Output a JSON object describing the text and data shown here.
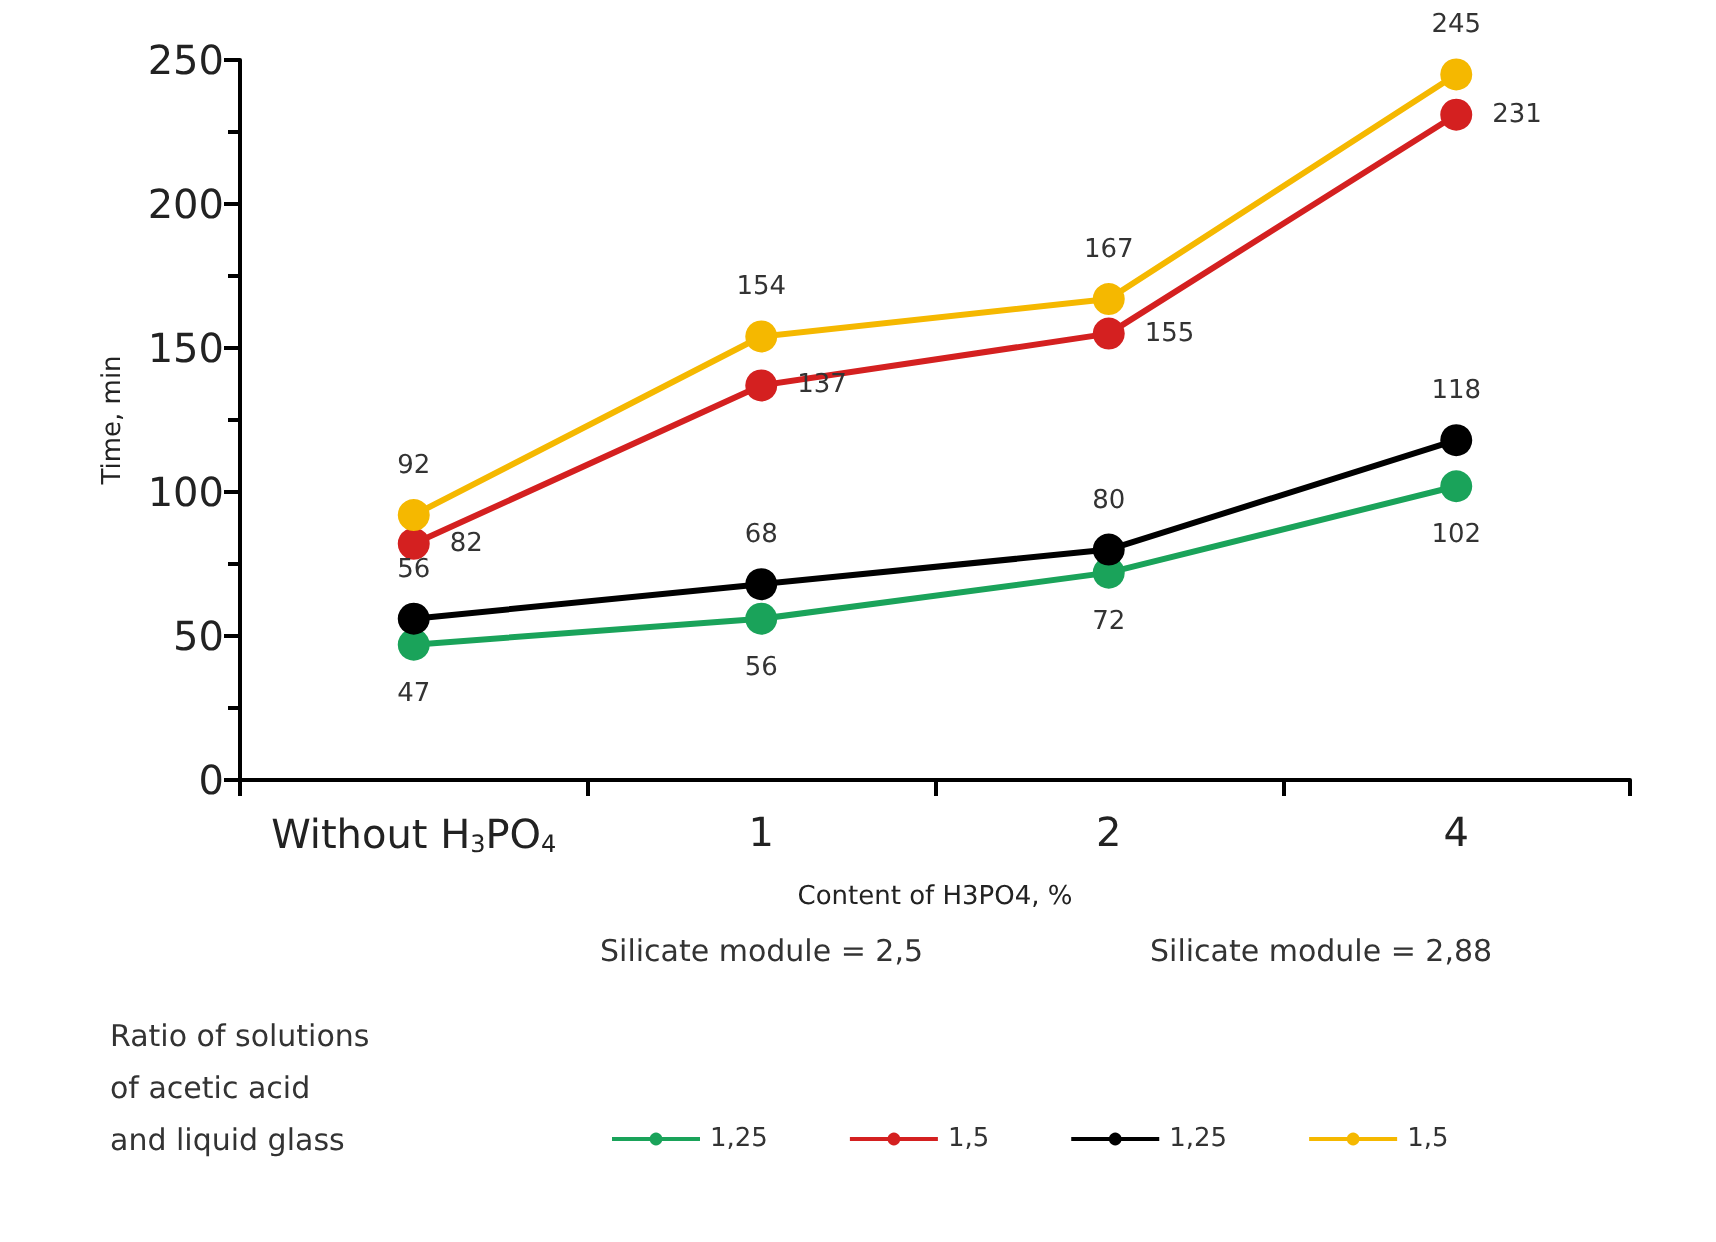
{
  "chart_data": {
    "type": "line",
    "xlabel": "Content of H3PO4, %",
    "ylabel": "Time, min",
    "categories": [
      "Without H$_{3}$PO$_{4}$",
      "1",
      "2",
      "4"
    ],
    "ylim": [
      0,
      250
    ],
    "yticks": [
      0,
      50,
      100,
      150,
      200,
      250
    ],
    "legend": "bottom",
    "legend_title": "Ratio of solutions\nof acetic acid\nand liquid glass",
    "annotations": [
      "Silicate module = 2,5",
      "Silicate module = 2,88"
    ],
    "marker": "circle",
    "data_labels": true,
    "series": [
      {
        "name": "1,25",
        "color": "#1aa35a",
        "values": [
          47,
          56,
          72,
          102
        ]
      },
      {
        "name": "1,5",
        "color": "#d42020",
        "values": [
          82,
          137,
          155,
          231
        ]
      },
      {
        "name": "1,25",
        "color": "#000000",
        "values": [
          56,
          68,
          80,
          118
        ]
      },
      {
        "name": "1,5",
        "color": "#f5b800",
        "values": [
          92,
          154,
          167,
          245
        ]
      }
    ]
  }
}
